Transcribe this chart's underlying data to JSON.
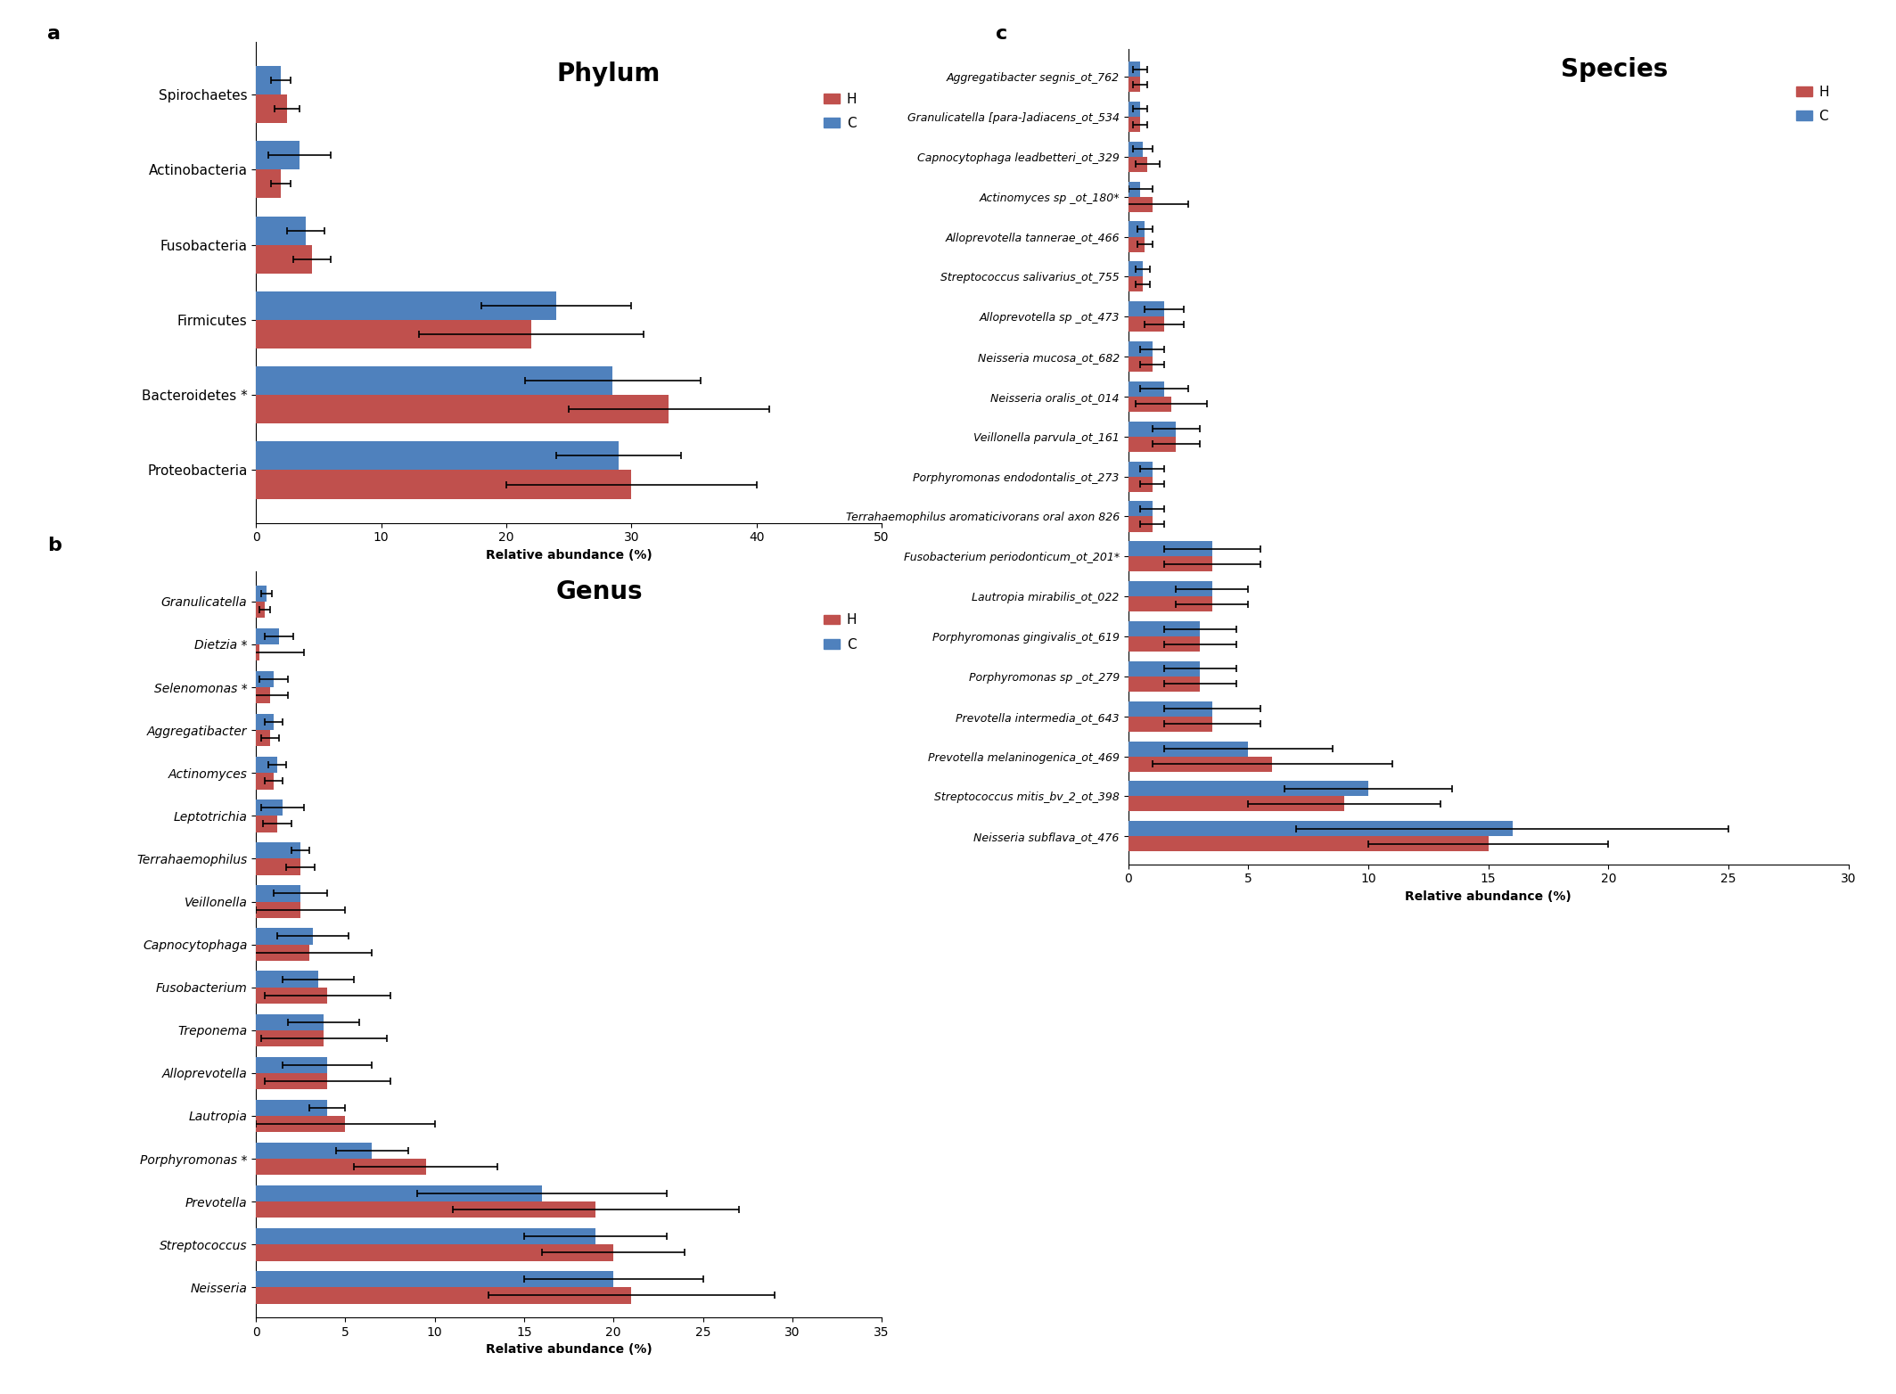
{
  "phylum": {
    "categories": [
      "Spirochaetes",
      "Actinobacteria",
      "Fusobacteria",
      "Firmicutes",
      "Bacteroidetes *",
      "Proteobacteria"
    ],
    "H_values": [
      2.5,
      2.0,
      4.5,
      22.0,
      33.0,
      30.0
    ],
    "C_values": [
      2.0,
      3.5,
      4.0,
      24.0,
      28.5,
      29.0
    ],
    "H_err": [
      1.0,
      0.8,
      1.5,
      9.0,
      8.0,
      10.0
    ],
    "C_err": [
      0.8,
      2.5,
      1.5,
      6.0,
      7.0,
      5.0
    ],
    "xlim": [
      0,
      50
    ],
    "xticks": [
      0,
      10,
      20,
      30,
      40,
      50
    ],
    "xlabel": "Relative abundance (%)",
    "title": "Phylum"
  },
  "genus": {
    "categories": [
      "Granulicatella",
      "Dietzia *",
      "Selenomonas *",
      "Aggregatibacter",
      "Actinomyces",
      "Leptotrichia",
      "Terrahaemophilus",
      "Veillonella",
      "Capnocytophaga",
      "Fusobacterium",
      "Treponema",
      "Alloprevotella",
      "Lautropia",
      "Porphyromonas *",
      "Prevotella",
      "Streptococcus",
      "Neisseria"
    ],
    "H_values": [
      0.5,
      0.2,
      0.8,
      0.8,
      1.0,
      1.2,
      2.5,
      2.5,
      3.0,
      4.0,
      3.8,
      4.0,
      5.0,
      9.5,
      19.0,
      20.0,
      21.0
    ],
    "C_values": [
      0.6,
      1.3,
      1.0,
      1.0,
      1.2,
      1.5,
      2.5,
      2.5,
      3.2,
      3.5,
      3.8,
      4.0,
      4.0,
      6.5,
      16.0,
      19.0,
      20.0
    ],
    "H_err": [
      0.3,
      2.5,
      1.0,
      0.5,
      0.5,
      0.8,
      0.8,
      2.5,
      3.5,
      3.5,
      3.5,
      3.5,
      5.0,
      4.0,
      8.0,
      4.0,
      8.0
    ],
    "C_err": [
      0.3,
      0.8,
      0.8,
      0.5,
      0.5,
      1.2,
      0.5,
      1.5,
      2.0,
      2.0,
      2.0,
      2.5,
      1.0,
      2.0,
      7.0,
      4.0,
      5.0
    ],
    "xlim": [
      0,
      35
    ],
    "xticks": [
      0,
      5,
      10,
      15,
      20,
      25,
      30,
      35
    ],
    "xlabel": "Relative abundance (%)",
    "title": "Genus"
  },
  "species": {
    "categories": [
      "Aggregatibacter segnis_ot_762",
      "Granulicatella [para-]adiacens_ot_534",
      "Capnocytophaga leadbetteri_ot_329",
      "Actinomyces sp _ot_180*",
      "Alloprevotella tannerae_ot_466",
      "Streptococcus salivarius_ot_755",
      "Alloprevotella sp _ot_473",
      "Neisseria mucosa_ot_682",
      "Neisseria oralis_ot_014",
      "Veillonella parvula_ot_161",
      "Porphyromonas endodontalis_ot_273",
      "Terrahaemophilus aromaticivorans oral axon 826",
      "Fusobacterium periodonticum_ot_201*",
      "Lautropia mirabilis_ot_022",
      "Porphyromonas gingivalis_ot_619",
      "Porphyromonas sp _ot_279",
      "Prevotella intermedia_ot_643",
      "Prevotella melaninogenica_ot_469",
      "Streptococcus mitis_bv_2_ot_398",
      "Neisseria subflava_ot_476"
    ],
    "H_values": [
      0.5,
      0.5,
      0.8,
      1.0,
      0.7,
      0.6,
      1.5,
      1.0,
      1.8,
      2.0,
      1.0,
      1.0,
      3.5,
      3.5,
      3.0,
      3.0,
      3.5,
      6.0,
      9.0,
      15.0
    ],
    "C_values": [
      0.5,
      0.5,
      0.6,
      0.5,
      0.7,
      0.6,
      1.5,
      1.0,
      1.5,
      2.0,
      1.0,
      1.0,
      3.5,
      3.5,
      3.0,
      3.0,
      3.5,
      5.0,
      10.0,
      16.0
    ],
    "H_err": [
      0.3,
      0.3,
      0.5,
      1.5,
      0.3,
      0.3,
      0.8,
      0.5,
      1.5,
      1.0,
      0.5,
      0.5,
      2.0,
      1.5,
      1.5,
      1.5,
      2.0,
      5.0,
      4.0,
      5.0
    ],
    "C_err": [
      0.3,
      0.3,
      0.4,
      0.5,
      0.3,
      0.3,
      0.8,
      0.5,
      1.0,
      1.0,
      0.5,
      0.5,
      2.0,
      1.5,
      1.5,
      1.5,
      2.0,
      3.5,
      3.5,
      9.0
    ],
    "xlim": [
      0,
      30
    ],
    "xticks": [
      0,
      5,
      10,
      15,
      20,
      25,
      30
    ],
    "xlabel": "Relative abundance (%)",
    "title": "Species"
  },
  "color_H": "#c0504d",
  "color_C": "#4f81bd",
  "bar_height": 0.38
}
